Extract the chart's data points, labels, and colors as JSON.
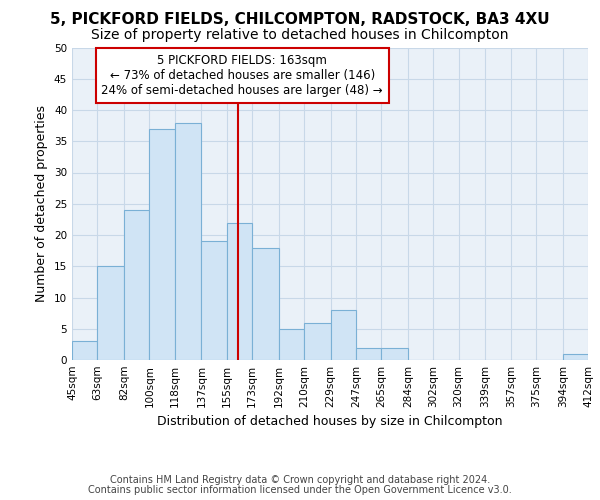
{
  "title1": "5, PICKFORD FIELDS, CHILCOMPTON, RADSTOCK, BA3 4XU",
  "title2": "Size of property relative to detached houses in Chilcompton",
  "xlabel": "Distribution of detached houses by size in Chilcompton",
  "ylabel": "Number of detached properties",
  "footnote1": "Contains HM Land Registry data © Crown copyright and database right 2024.",
  "footnote2": "Contains public sector information licensed under the Open Government Licence v3.0.",
  "annotation_line1": "5 PICKFORD FIELDS: 163sqm",
  "annotation_line2": "← 73% of detached houses are smaller (146)",
  "annotation_line3": "24% of semi-detached houses are larger (48) →",
  "bin_edges": [
    45,
    63,
    82,
    100,
    118,
    137,
    155,
    173,
    192,
    210,
    229,
    247,
    265,
    284,
    302,
    320,
    339,
    357,
    375,
    394,
    412
  ],
  "bar_heights": [
    3,
    15,
    24,
    37,
    38,
    19,
    22,
    18,
    5,
    6,
    8,
    2,
    2,
    0,
    0,
    0,
    0,
    0,
    0,
    1
  ],
  "bar_color": "#d0e4f5",
  "bar_edge_color": "#7ab0d5",
  "vline_x": 163,
  "vline_color": "#cc0000",
  "annotation_box_color": "#cc0000",
  "fig_bg_color": "#ffffff",
  "plot_bg_color": "#eaf1f8",
  "grid_color": "#c8d8e8",
  "ylim": [
    0,
    50
  ],
  "yticks": [
    0,
    5,
    10,
    15,
    20,
    25,
    30,
    35,
    40,
    45,
    50
  ],
  "title_fontsize": 11,
  "subtitle_fontsize": 10,
  "axis_label_fontsize": 9,
  "tick_fontsize": 7.5,
  "footnote_fontsize": 7
}
